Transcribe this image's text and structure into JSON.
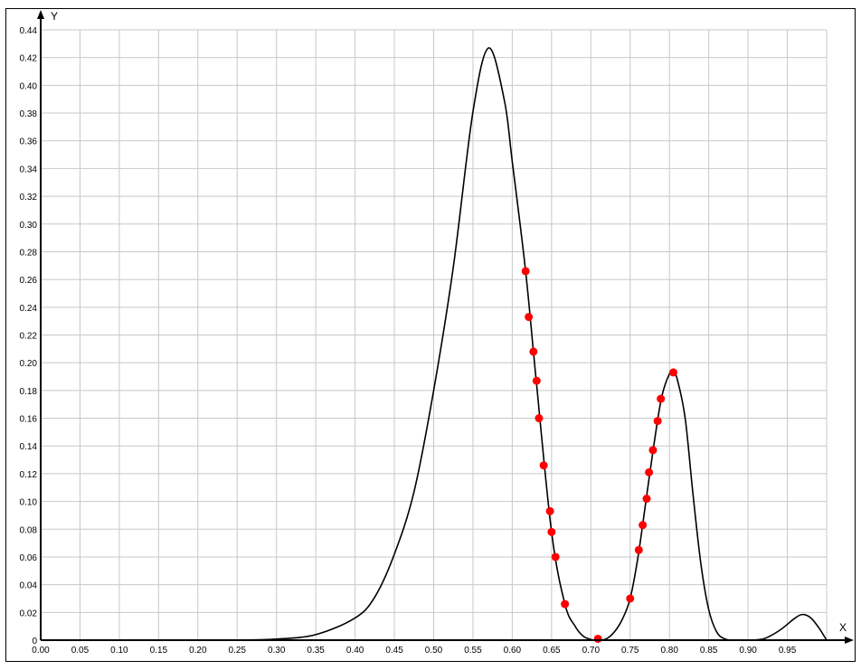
{
  "chart_data": {
    "type": "line",
    "title": "",
    "xlabel": "X",
    "ylabel": "Y",
    "xlim": [
      0,
      1.0
    ],
    "ylim": [
      0,
      0.44
    ],
    "grid": true,
    "x_ticks": [
      "0.00",
      "0.05",
      "0.10",
      "0.15",
      "0.20",
      "0.25",
      "0.30",
      "0.35",
      "0.40",
      "0.45",
      "0.50",
      "0.55",
      "0.60",
      "0.65",
      "0.70",
      "0.75",
      "0.80",
      "0.85",
      "0.90",
      "0.95"
    ],
    "x_tick_values": [
      0,
      0.05,
      0.1,
      0.15,
      0.2,
      0.25,
      0.3,
      0.35,
      0.4,
      0.45,
      0.5,
      0.55,
      0.6,
      0.65,
      0.7,
      0.75,
      0.8,
      0.85,
      0.9,
      0.95
    ],
    "y_ticks": [
      "0",
      "0.02",
      "0.04",
      "0.06",
      "0.08",
      "0.10",
      "0.12",
      "0.14",
      "0.16",
      "0.18",
      "0.20",
      "0.22",
      "0.24",
      "0.26",
      "0.28",
      "0.30",
      "0.32",
      "0.34",
      "0.36",
      "0.38",
      "0.40",
      "0.42",
      "0.44"
    ],
    "y_tick_values": [
      0,
      0.02,
      0.04,
      0.06,
      0.08,
      0.1,
      0.12,
      0.14,
      0.16,
      0.18,
      0.2,
      0.22,
      0.24,
      0.26,
      0.28,
      0.3,
      0.32,
      0.34,
      0.36,
      0.38,
      0.4,
      0.42,
      0.44
    ],
    "colors": {
      "curve": "#000000",
      "points": "#ff0000",
      "grid": "#c8c8c8"
    },
    "curve": {
      "x": [
        0,
        0.2,
        0.25,
        0.3,
        0.35,
        0.4,
        0.425,
        0.45,
        0.475,
        0.5,
        0.525,
        0.55,
        0.57,
        0.59,
        0.6,
        0.617,
        0.63,
        0.65,
        0.667,
        0.68,
        0.69,
        0.7,
        0.71,
        0.72,
        0.73,
        0.74,
        0.75,
        0.76,
        0.77,
        0.78,
        0.79,
        0.8,
        0.805,
        0.81,
        0.82,
        0.83,
        0.84,
        0.85,
        0.86,
        0.87,
        0.88,
        0.9,
        0.92,
        0.94,
        0.96,
        0.97,
        0.98,
        0.99,
        1.0
      ],
      "y": [
        0,
        0,
        0.0001,
        0.0008,
        0.004,
        0.016,
        0.031,
        0.062,
        0.107,
        0.18,
        0.269,
        0.381,
        0.427,
        0.389,
        0.345,
        0.266,
        0.19,
        0.078,
        0.026,
        0.01,
        0.003,
        0.0005,
        0,
        0.001,
        0.006,
        0.015,
        0.03,
        0.06,
        0.1,
        0.14,
        0.175,
        0.192,
        0.193,
        0.188,
        0.16,
        0.105,
        0.055,
        0.022,
        0.006,
        0.001,
        0,
        0,
        0.001,
        0.007,
        0.016,
        0.0185,
        0.016,
        0.009,
        0
      ]
    },
    "points": {
      "x": [
        0.617,
        0.621,
        0.627,
        0.631,
        0.634,
        0.64,
        0.648,
        0.65,
        0.655,
        0.667,
        0.709,
        0.75,
        0.761,
        0.766,
        0.771,
        0.774,
        0.779,
        0.785,
        0.789,
        0.805
      ],
      "y": [
        0.266,
        0.233,
        0.208,
        0.187,
        0.16,
        0.126,
        0.093,
        0.078,
        0.06,
        0.026,
        0.001,
        0.03,
        0.065,
        0.083,
        0.102,
        0.121,
        0.137,
        0.158,
        0.174,
        0.193
      ]
    }
  }
}
